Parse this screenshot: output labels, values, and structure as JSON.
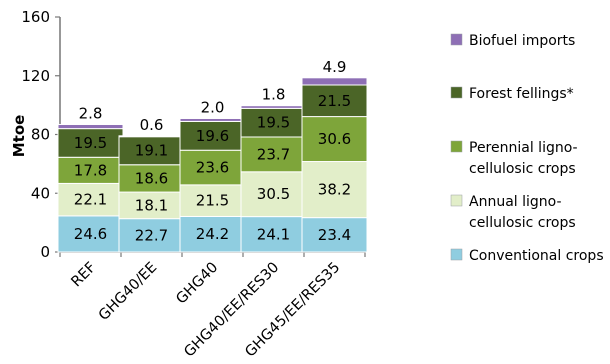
{
  "chart_data": {
    "type": "bar",
    "stacked": true,
    "title": "",
    "xlabel": "",
    "ylabel": "Mtoe",
    "ylim": [
      0,
      160
    ],
    "yticks": [
      0,
      40,
      80,
      120,
      160
    ],
    "grid": false,
    "legend_position": "right",
    "categories": [
      "REF",
      "GHG40/EE",
      "GHG40",
      "GHG40/EE/RES30",
      "GHG45/EE/RES35"
    ],
    "series": [
      {
        "name": "Conventional crops",
        "color": "#8fcde0",
        "values": [
          24.6,
          22.7,
          24.2,
          24.1,
          23.4
        ]
      },
      {
        "name": "Annual ligno-cellulosic crops",
        "color": "#e2eec9",
        "values": [
          22.1,
          18.1,
          21.5,
          30.5,
          38.2
        ]
      },
      {
        "name": "Perennial ligno-cellulosic crops",
        "color": "#7ea53a",
        "values": [
          17.8,
          18.6,
          23.6,
          23.7,
          30.6
        ]
      },
      {
        "name": "Forest fellings*",
        "color": "#4b6527",
        "values": [
          19.5,
          19.1,
          19.6,
          19.5,
          21.5
        ]
      },
      {
        "name": "Biofuel imports",
        "color": "#8e6fb5",
        "values": [
          2.8,
          0.6,
          2.0,
          1.8,
          4.9
        ]
      }
    ],
    "legend_order": [
      {
        "lines": [
          "Biofuel imports"
        ],
        "color": "#8e6fb5"
      },
      {
        "lines": [
          "Forest fellings*"
        ],
        "color": "#4b6527"
      },
      {
        "lines": [
          "Perennial ligno-",
          "cellulosic crops"
        ],
        "color": "#7ea53a"
      },
      {
        "lines": [
          "Annual ligno-",
          "cellulosic crops"
        ],
        "color": "#e2eec9"
      },
      {
        "lines": [
          "Conventional crops"
        ],
        "color": "#8fcde0"
      }
    ]
  }
}
